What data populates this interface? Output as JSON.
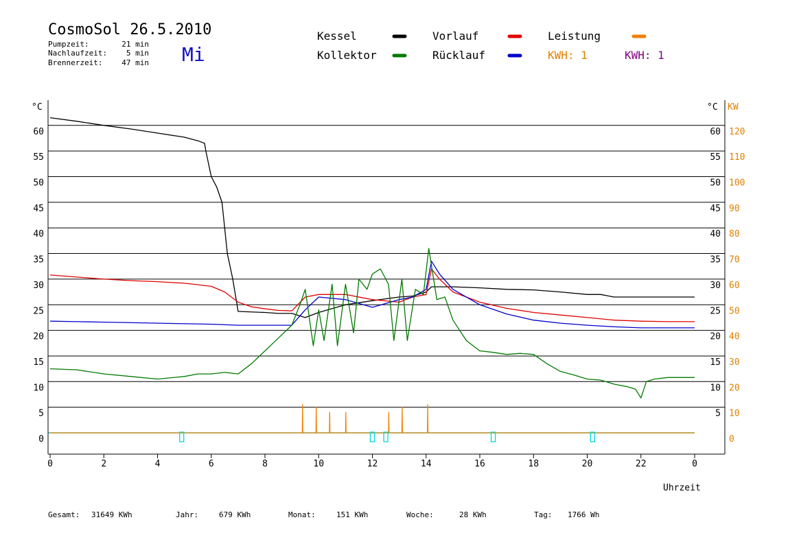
{
  "header": {
    "title": "CosmoSol 26.5.2010",
    "day": "Mi",
    "stats": [
      {
        "label": "Pumpzeit:",
        "value": "21 min"
      },
      {
        "label": "Nachlaufzeit:",
        "value": "5 min"
      },
      {
        "label": "Brennerzeit:",
        "value": "47 min"
      }
    ]
  },
  "legend": {
    "items": [
      {
        "label": "Kessel",
        "color": "#000000"
      },
      {
        "label": "Vorlauf",
        "color": "#e00000"
      },
      {
        "label": "Leistung",
        "color": "#f08000"
      },
      {
        "label": "Kollektor",
        "color": "#007a00"
      },
      {
        "label": "Rücklauf",
        "color": "#0000cc"
      }
    ],
    "kwh_a": {
      "label": "KWH: 1",
      "color": "#e08000"
    },
    "kwh_b": {
      "label": "KWH: 1",
      "color": "#800080"
    }
  },
  "footer": [
    {
      "label": "Gesamt:",
      "value": "31649 KWh"
    },
    {
      "label": "Jahr:",
      "value": "679 KWh"
    },
    {
      "label": "Monat:",
      "value": "151 KWh"
    },
    {
      "label": "Woche:",
      "value": "28 KWh"
    },
    {
      "label": "Tag:",
      "value": "1766 Wh"
    }
  ],
  "chart_data": {
    "type": "line",
    "xlabel": "Uhrzeit",
    "ylabel_left": "°C",
    "ylabel_right_temp": "°C",
    "ylabel_right_power": "KW",
    "xlim": [
      0,
      24
    ],
    "ylim": [
      -4,
      65
    ],
    "x_ticks": [
      "0",
      "2",
      "4",
      "6",
      "8",
      "10",
      "12",
      "14",
      "16",
      "18",
      "20",
      "22",
      "0"
    ],
    "y_ticks": [
      0,
      5,
      10,
      15,
      20,
      25,
      30,
      35,
      40,
      45,
      50,
      55,
      60
    ],
    "power_ticks": [
      0,
      10,
      20,
      30,
      40,
      50,
      60,
      70,
      80,
      90,
      100,
      110,
      120
    ],
    "grid": true,
    "series": [
      {
        "name": "Kessel",
        "color": "#000000",
        "x": [
          0,
          1,
          2,
          3,
          4,
          5,
          5.5,
          5.75,
          5.8,
          6.0,
          6.2,
          6.4,
          6.5,
          6.6,
          6.8,
          7.0,
          8.0,
          8.5,
          9.0,
          9.5,
          10.0,
          11.0,
          12.0,
          13.0,
          13.5,
          14.0,
          14.2,
          15,
          16,
          17,
          18,
          19,
          20,
          20.5,
          21,
          22,
          23,
          24
        ],
        "y": [
          61.5,
          60.8,
          60,
          59.3,
          58.5,
          57.7,
          57,
          56.5,
          55,
          50,
          48,
          45,
          40,
          35,
          30,
          23.7,
          23.5,
          23.3,
          23.3,
          22.5,
          23.5,
          25,
          25.8,
          26.5,
          26.7,
          27.5,
          28.5,
          28.5,
          28.3,
          28,
          27.9,
          27.5,
          27,
          27,
          26.5,
          26.5,
          26.5,
          26.5
        ]
      },
      {
        "name": "Vorlauf",
        "color": "#e00000",
        "x": [
          0,
          1,
          2,
          3,
          4,
          5,
          6,
          6.5,
          7,
          7.5,
          8,
          8.5,
          9,
          9.5,
          10,
          11,
          12,
          13,
          13.5,
          14,
          14.2,
          14.5,
          15,
          16,
          17,
          18,
          19,
          20,
          21,
          22,
          23,
          24
        ],
        "y": [
          30.8,
          30.4,
          30,
          29.7,
          29.5,
          29.2,
          28.6,
          27.5,
          25.5,
          24.6,
          24.2,
          23.9,
          23.8,
          26.5,
          27,
          27,
          26,
          25.5,
          26.5,
          27,
          32,
          30,
          27.5,
          25.5,
          24.3,
          23.5,
          23,
          22.5,
          22,
          21.8,
          21.7,
          21.7
        ]
      },
      {
        "name": "Rücklauf",
        "color": "#0000cc",
        "x": [
          0,
          1,
          2,
          3,
          4,
          5,
          6,
          7,
          8,
          9,
          9.5,
          10,
          11,
          12,
          13,
          13.5,
          14,
          14.2,
          14.5,
          15,
          16,
          17,
          18,
          19,
          20,
          21,
          22,
          23,
          24
        ],
        "y": [
          21.8,
          21.7,
          21.6,
          21.5,
          21.4,
          21.3,
          21.2,
          21.0,
          21.0,
          21.0,
          24,
          26.5,
          26,
          24.5,
          26,
          26.5,
          28,
          33.5,
          31,
          28,
          25,
          23.2,
          22,
          21.4,
          21,
          20.7,
          20.5,
          20.5,
          20.5
        ]
      },
      {
        "name": "Kollektor",
        "color": "#007a00",
        "x": [
          0,
          1,
          2,
          3,
          4,
          5,
          5.5,
          6,
          6.5,
          7,
          7.5,
          8,
          8.5,
          9,
          9.3,
          9.5,
          9.8,
          10,
          10.2,
          10.5,
          10.7,
          11,
          11.3,
          11.5,
          11.8,
          12,
          12.3,
          12.6,
          12.8,
          13.1,
          13.3,
          13.6,
          13.9,
          14.1,
          14.4,
          14.7,
          15,
          15.5,
          16,
          16.5,
          17,
          17.5,
          18,
          18.5,
          19,
          19.5,
          20,
          20.5,
          21,
          21.5,
          21.8,
          22,
          22.2,
          22.5,
          23,
          23.5,
          24
        ],
        "y": [
          12.5,
          12.3,
          11.5,
          11,
          10.5,
          11,
          11.5,
          11.5,
          11.8,
          11.5,
          13.5,
          16,
          18.5,
          21,
          25,
          28,
          17,
          24,
          18,
          29,
          17,
          29,
          19.5,
          30,
          28,
          31,
          32,
          29,
          18,
          30,
          18,
          28,
          27,
          36,
          26,
          26.5,
          22,
          18,
          16,
          15.7,
          15.3,
          15.5,
          15.3,
          13.5,
          12,
          11.3,
          10.5,
          10.3,
          9.5,
          9,
          8.5,
          6.8,
          10,
          10.5,
          10.8,
          10.8,
          10.8
        ]
      },
      {
        "name": "Leistung",
        "color": "#f08000",
        "x": [
          0,
          9.39,
          9.4,
          9.41,
          9.5,
          9.9,
          9.91,
          9.92,
          10.0,
          10.4,
          10.41,
          10.42,
          10.5,
          11.0,
          11.01,
          11.02,
          11.1,
          12.6,
          12.61,
          12.62,
          12.7,
          13.1,
          13.11,
          13.12,
          13.2,
          14.05,
          14.06,
          14.07,
          14.15,
          24
        ],
        "y": [
          0,
          0,
          5.5,
          0,
          0,
          0,
          5,
          0,
          0,
          0,
          4,
          0,
          0,
          0,
          4,
          0,
          0,
          0,
          4,
          0,
          0,
          0,
          5,
          0,
          0,
          0,
          5.5,
          0,
          0,
          0
        ]
      }
    ]
  }
}
